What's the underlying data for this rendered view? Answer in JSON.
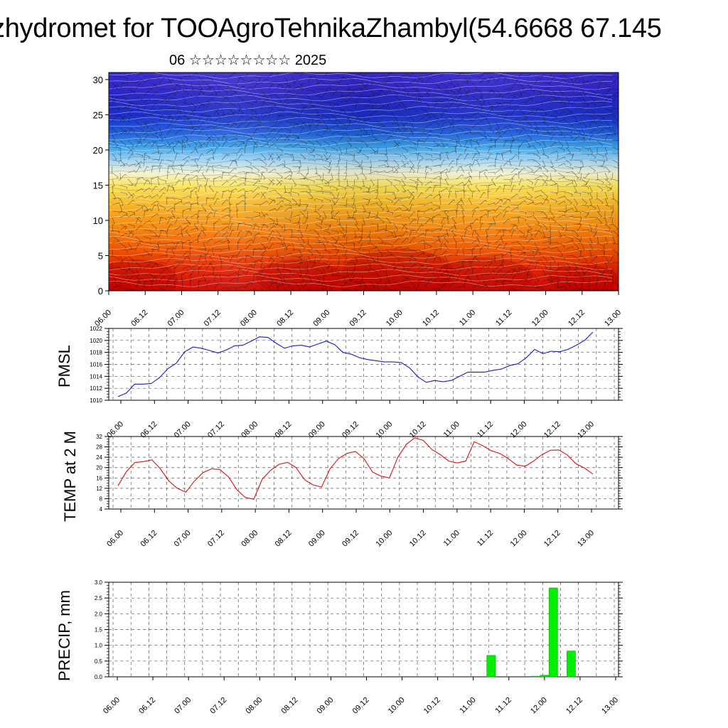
{
  "header": {
    "title": "zhydromet for TOOAgroTehnikaZhambyl(54.6668 67.145",
    "subtitle": "06 ☆☆☆☆☆☆☆☆ 2025"
  },
  "colors": {
    "pmsl_line": "#1a1acc",
    "temp_line": "#dd1111",
    "precip_bar": "#00ee00",
    "cross_section_scale": [
      "#cc0000",
      "#e83000",
      "#f56a00",
      "#f79a10",
      "#f5c830",
      "#fbef60",
      "#f3f2d8",
      "#a8d7f2",
      "#3aa6e8",
      "#1f63dc",
      "#1a2bc8",
      "#3a1fbf",
      "#5b1fb0"
    ]
  },
  "time_axis_labels": [
    "06.00",
    "06.12",
    "07.00",
    "07.12",
    "08.00",
    "08.12",
    "09.00",
    "09.12",
    "10.00",
    "10.12",
    "11.00",
    "11.12",
    "12.00",
    "12.12",
    "13.00"
  ],
  "chart_data": [
    {
      "type": "heatmap",
      "description_panel": "cross-section",
      "x_labels": [
        "06.00",
        "06.12",
        "07.00",
        "07.12",
        "08.00",
        "08.12",
        "09.00",
        "09.12",
        "10.00",
        "10.12",
        "11.00",
        "11.12",
        "12.00",
        "12.12",
        "13.00"
      ],
      "y_ticks": [
        0,
        5,
        10,
        15,
        20,
        25,
        30
      ],
      "ylim": [
        0,
        31
      ],
      "overlay": "wind barbs",
      "ylabel": ""
    },
    {
      "type": "line",
      "ylabel": "PMSL",
      "ylim": [
        1010,
        1022
      ],
      "y_ticks": [
        1010,
        1012,
        1014,
        1016,
        1018,
        1020,
        1022
      ],
      "x_labels": [
        "06.00",
        "06.12",
        "07.00",
        "07.12",
        "08.00",
        "08.12",
        "09.00",
        "09.12",
        "10.00",
        "10.12",
        "11.00",
        "11.12",
        "12.00",
        "12.12",
        "13.00"
      ],
      "values": [
        1010.6,
        1011.2,
        1012.7,
        1012.7,
        1012.8,
        1013.8,
        1015.3,
        1016.2,
        1018.1,
        1018.9,
        1018.7,
        1018.3,
        1017.9,
        1018.4,
        1019.1,
        1019.2,
        1019.9,
        1020.6,
        1020.5,
        1019.5,
        1018.7,
        1019.1,
        1019.2,
        1018.9,
        1019.4,
        1019.9,
        1019.3,
        1018.0,
        1017.7,
        1017.1,
        1016.8,
        1016.6,
        1016.4,
        1016.4,
        1016.3,
        1015.4,
        1013.9,
        1013.0,
        1013.3,
        1013.1,
        1013.3,
        1014.0,
        1014.7,
        1014.7,
        1014.7,
        1015.0,
        1015.2,
        1015.8,
        1016.1,
        1017.1,
        1018.5,
        1017.8,
        1018.2,
        1018.1,
        1018.5,
        1019.2,
        1020.0,
        1021.4
      ]
    },
    {
      "type": "line",
      "ylabel": "TEMP at 2 M",
      "ylim": [
        4,
        32
      ],
      "y_ticks": [
        4,
        8,
        12,
        16,
        20,
        24,
        28,
        32
      ],
      "x_labels": [
        "06.00",
        "06.12",
        "07.00",
        "07.12",
        "08.00",
        "08.12",
        "09.00",
        "09.12",
        "10.00",
        "10.12",
        "11.00",
        "11.12",
        "12.00",
        "12.12",
        "13.00"
      ],
      "values": [
        13.0,
        18.5,
        22.0,
        22.3,
        23.0,
        19.5,
        14.8,
        12.0,
        10.5,
        14.8,
        18.0,
        19.5,
        19.3,
        16.5,
        11.5,
        8.5,
        7.8,
        15.5,
        19.0,
        21.3,
        22.0,
        20.0,
        15.3,
        13.3,
        12.5,
        19.5,
        23.5,
        25.5,
        26.2,
        23.5,
        18.3,
        16.7,
        16.0,
        24.0,
        29.0,
        31.5,
        30.5,
        27.0,
        25.0,
        22.5,
        21.8,
        22.5,
        30.0,
        28.5,
        26.5,
        25.5,
        23.5,
        21.0,
        20.5,
        22.5,
        25.0,
        26.7,
        26.8,
        24.8,
        21.5,
        19.8,
        17.5
      ]
    },
    {
      "type": "bar",
      "ylabel": "PRECIP, mm",
      "ylim": [
        0,
        3.0
      ],
      "y_ticks": [
        "0.0",
        "0.5",
        "1.0",
        "1.5",
        "2.0",
        "2.5",
        "3.0"
      ],
      "x_labels": [
        "06.00",
        "06.12",
        "07.00",
        "07.12",
        "08.00",
        "08.12",
        "09.00",
        "09.12",
        "10.00",
        "10.12",
        "11.00",
        "11.12",
        "12.00",
        "12.12",
        "13.00"
      ],
      "bars": [
        {
          "x_hours": 126,
          "value": 0.68
        },
        {
          "x_hours": 141,
          "value": 0.02
        },
        {
          "x_hours": 144,
          "value": 0.05
        },
        {
          "x_hours": 147,
          "value": 2.82
        },
        {
          "x_hours": 153,
          "value": 0.82
        }
      ]
    }
  ]
}
